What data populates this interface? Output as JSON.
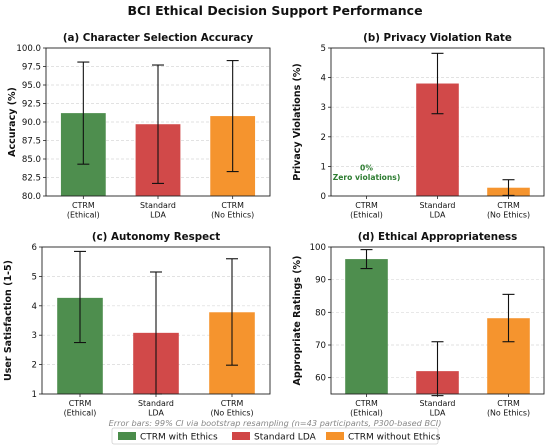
{
  "title": "BCI Ethical Decision Support Performance",
  "legend": [
    {
      "label": "CTRM with Ethics",
      "color": "#4a8c4a"
    },
    {
      "label": "Standard LDA",
      "color": "#d04545"
    },
    {
      "label": "CTRM without Ethics",
      "color": "#f5922a"
    }
  ],
  "footnote": "Error bars: 99% CI via bootstrap resampling (n=43 participants, P300-based BCI)",
  "chart_data": [
    {
      "type": "bar",
      "title": "(a) Character Selection Accuracy",
      "ylabel": "Accuracy (%)",
      "categories": [
        [
          "CTRM",
          "(Ethical)"
        ],
        [
          "Standard",
          "LDA"
        ],
        [
          "CTRM",
          "(No Ethics)"
        ]
      ],
      "values": [
        91.2,
        89.7,
        90.8
      ],
      "errors": [
        [
          84.3,
          98.1
        ],
        [
          81.7,
          97.7
        ],
        [
          83.3,
          98.3
        ]
      ],
      "colors": [
        "#4a8c4a",
        "#d04545",
        "#f5922a"
      ],
      "ylim": [
        80,
        100
      ],
      "yticks": [
        80.0,
        82.5,
        85.0,
        87.5,
        90.0,
        92.5,
        95.0,
        97.5,
        100.0
      ],
      "tick_decimals": 1,
      "grid": true
    },
    {
      "type": "bar",
      "title": "(b) Privacy Violation Rate",
      "ylabel": "Privacy Violations (%)",
      "categories": [
        [
          "CTRM",
          "(Ethical)"
        ],
        [
          "Standard",
          "LDA"
        ],
        [
          "CTRM",
          "(No Ethics)"
        ]
      ],
      "values": [
        0,
        3.8,
        0.28
      ],
      "errors": [
        null,
        [
          2.78,
          4.82
        ],
        [
          0.02,
          0.55
        ]
      ],
      "colors": [
        "#4a8c4a",
        "#d04545",
        "#f5922a"
      ],
      "ylim": [
        0,
        5
      ],
      "yticks": [
        0,
        1,
        2,
        3,
        4,
        5
      ],
      "tick_decimals": 0,
      "grid": true,
      "annotation": [
        "0%",
        "Zero violations)"
      ],
      "annotation_at": {
        "category": 0,
        "y": 0.55
      }
    },
    {
      "type": "bar",
      "title": "(c) Autonomy Respect",
      "ylabel": "User Satisfaction (1-5)",
      "categories": [
        [
          "CTRM",
          "(Ethical)"
        ],
        [
          "Standard",
          "LDA"
        ],
        [
          "CTRM",
          "(No Ethics)"
        ]
      ],
      "values": [
        4.27,
        3.08,
        3.78
      ],
      "errors": [
        [
          2.75,
          5.85
        ],
        [
          1.0,
          5.15
        ],
        [
          1.98,
          5.6
        ]
      ],
      "colors": [
        "#4a8c4a",
        "#d04545",
        "#f5922a"
      ],
      "ylim": [
        1,
        6
      ],
      "yticks": [
        1,
        2,
        3,
        4,
        5,
        6
      ],
      "tick_decimals": 0,
      "grid": true
    },
    {
      "type": "bar",
      "title": "(d) Ethical Appropriateness",
      "ylabel": "Appropriate Ratings (%)",
      "categories": [
        [
          "CTRM",
          "(Ethical)"
        ],
        [
          "Standard",
          "LDA"
        ],
        [
          "CTRM",
          "(No Ethics)"
        ]
      ],
      "values": [
        96.3,
        62.0,
        78.2
      ],
      "errors": [
        [
          93.4,
          99.2
        ],
        [
          54.5,
          71.0
        ],
        [
          71.0,
          85.5
        ]
      ],
      "colors": [
        "#4a8c4a",
        "#d04545",
        "#f5922a"
      ],
      "ylim": [
        55,
        100
      ],
      "yticks": [
        60,
        70,
        80,
        90,
        100
      ],
      "tick_decimals": 0,
      "grid": true
    }
  ]
}
